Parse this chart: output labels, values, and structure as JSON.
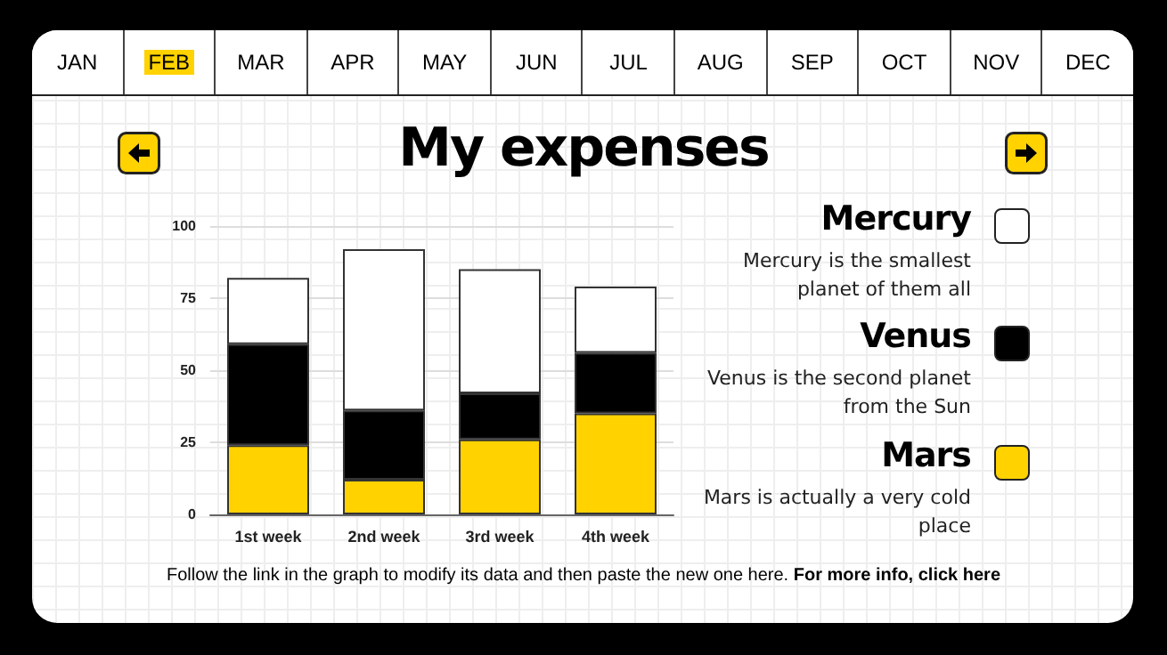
{
  "chart_data": {
    "type": "bar",
    "title": "My expenses",
    "categories": [
      "1st week",
      "2nd week",
      "3rd week",
      "4th week"
    ],
    "series": [
      {
        "name": "Mars",
        "color": "#ffd200",
        "values": [
          24,
          12,
          26,
          35
        ]
      },
      {
        "name": "Venus",
        "color": "#000000",
        "values": [
          35,
          24,
          16,
          21
        ]
      },
      {
        "name": "Mercury",
        "color": "#ffffff",
        "values": [
          23,
          56,
          43,
          23
        ]
      }
    ],
    "stacked": true,
    "ylim": [
      0,
      100
    ],
    "yticks": [
      0,
      25,
      50,
      75,
      100
    ],
    "grid": "y",
    "legend": "right",
    "annotations": [
      "JAN",
      "FEB",
      "MAR",
      "APR",
      "MAY",
      "JUN",
      "JUL",
      "AUG",
      "SEP",
      "OCT",
      "NOV",
      "DEC",
      "Mars is actually a very cold place",
      "Venus is the second planet from the Sun",
      "Mercury is the smallest planet of them all",
      "Follow the link in the graph to modify its data and then paste the new one here.",
      "For more info, click here"
    ]
  }
}
